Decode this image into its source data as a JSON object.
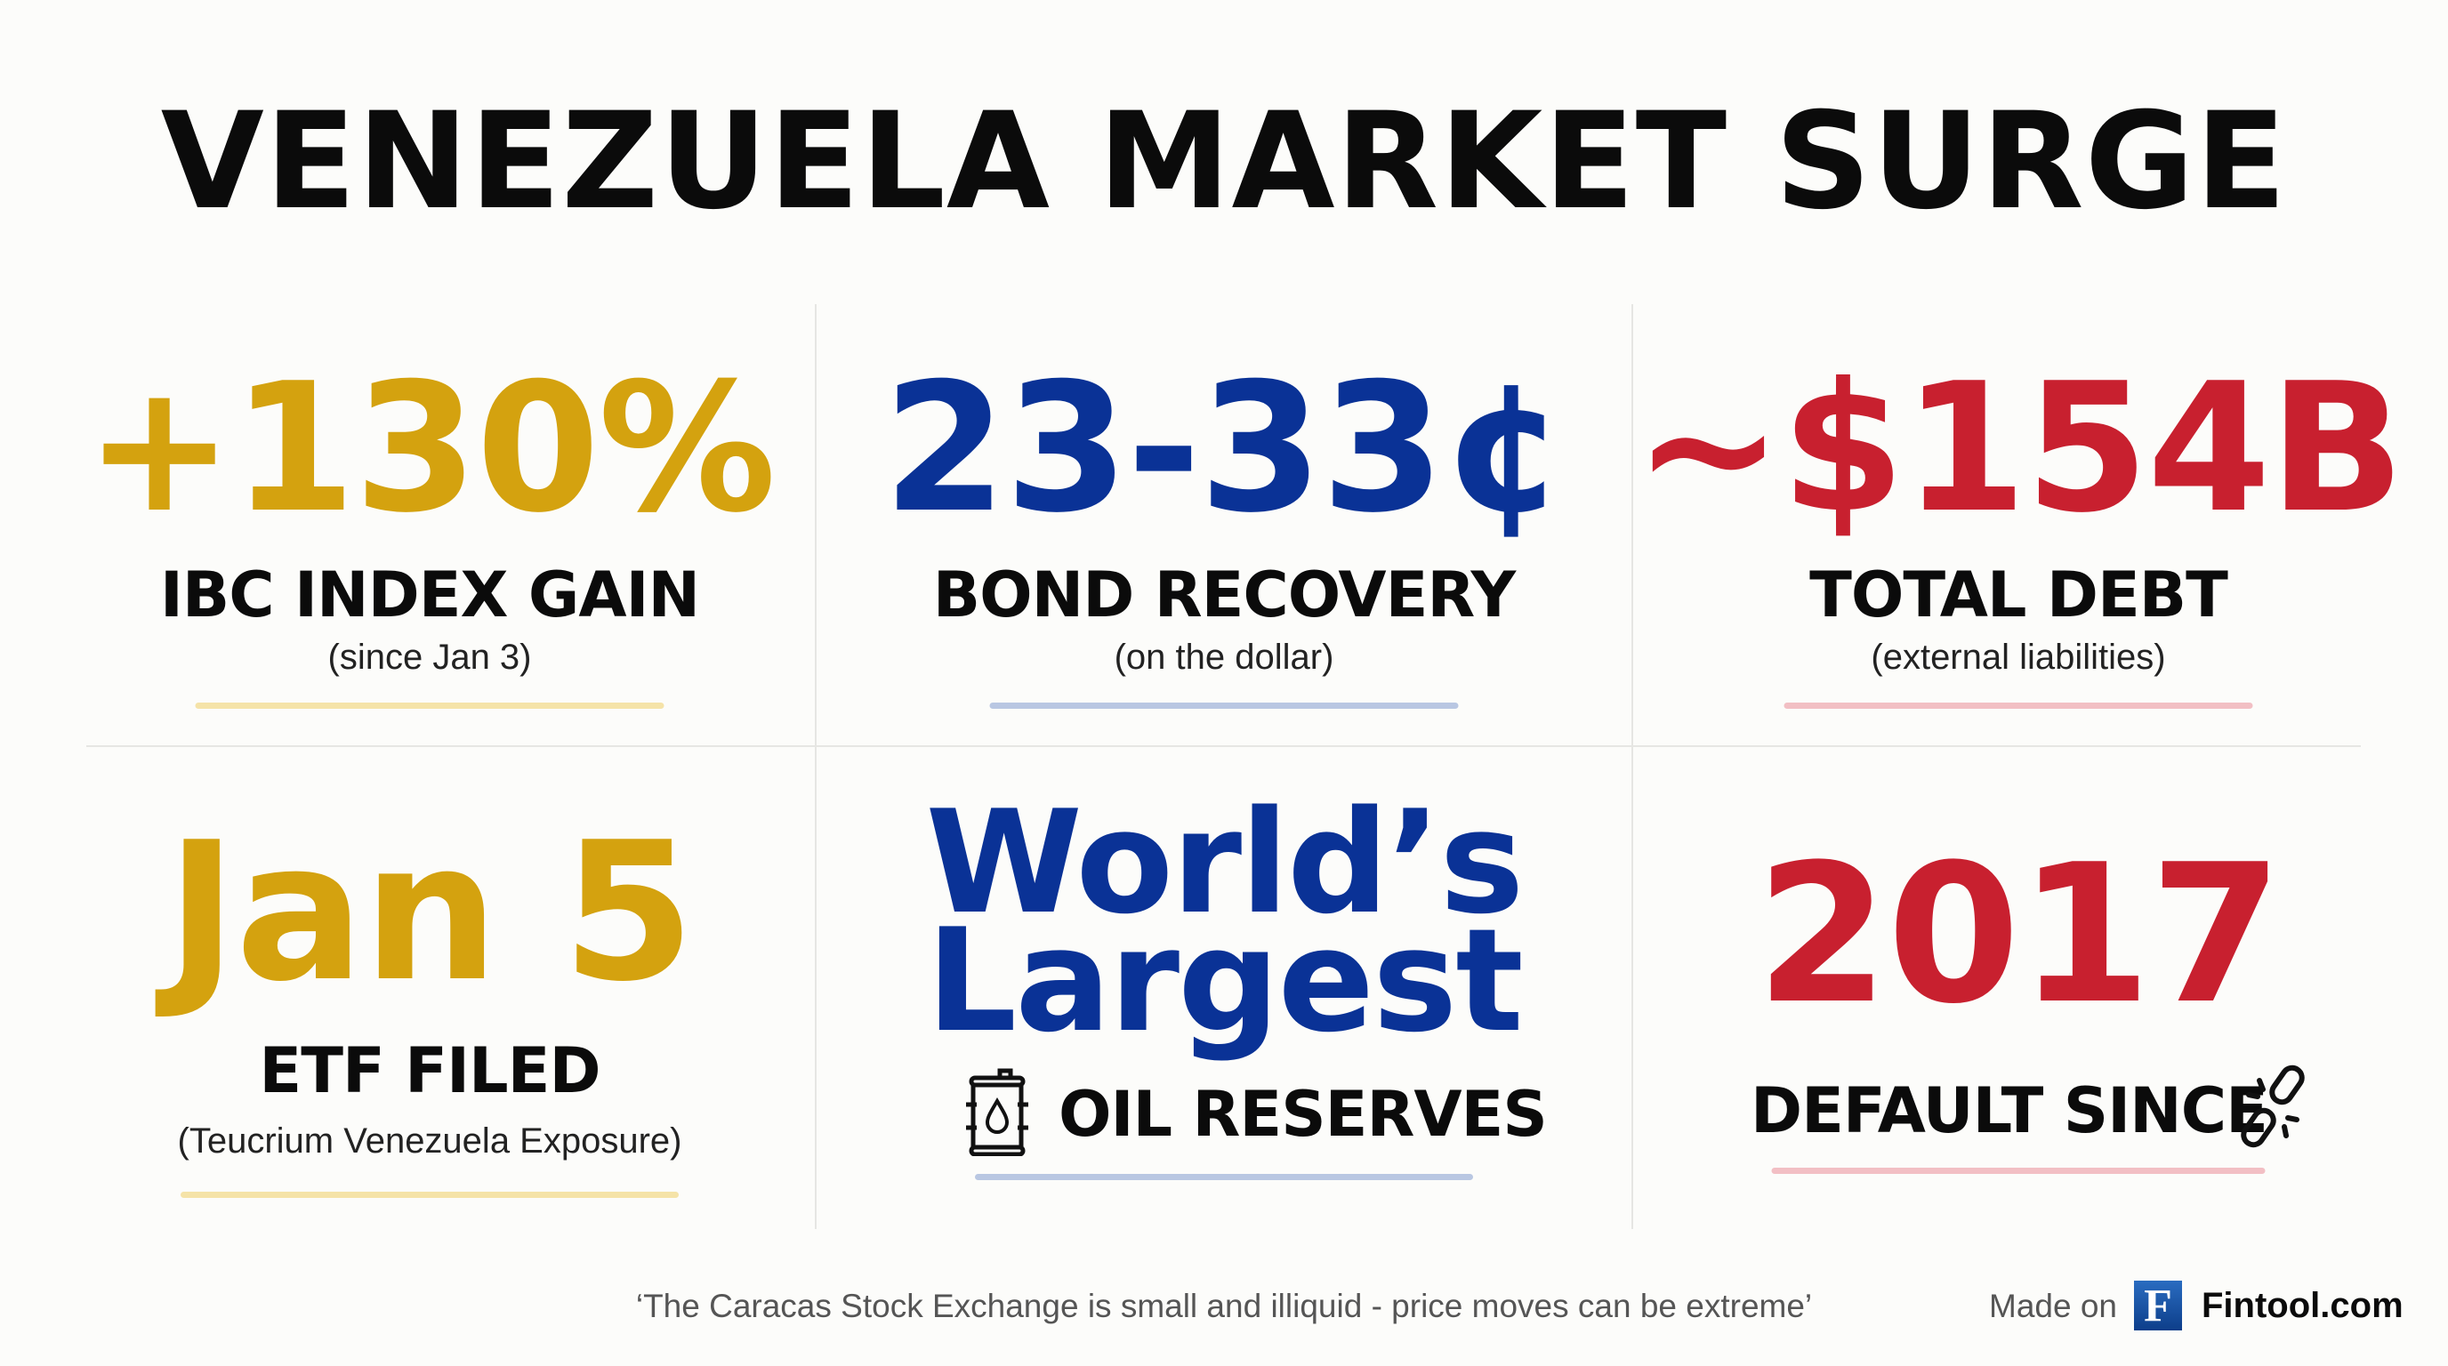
{
  "title": "VENEZUELA MARKET SURGE",
  "colors": {
    "gold": "#D4A20F",
    "blue": "#0A3296",
    "red": "#C8202F",
    "gold_line": "#F5E3A8",
    "blue_line": "#B9C7E2",
    "red_line": "#F2BFC4"
  },
  "cards": [
    {
      "value": "+130%",
      "label": "IBC INDEX GAIN",
      "sub": "(since Jan 3)"
    },
    {
      "value": "23-33¢",
      "label": "BOND RECOVERY",
      "sub": "(on the dollar)"
    },
    {
      "value": "~$154B",
      "label": "TOTAL DEBT",
      "sub": "(external liabilities)"
    },
    {
      "value": "Jan 5",
      "label": "ETF FILED",
      "sub": "(Teucrium Venezuela Exposure)"
    },
    {
      "value_line1": "World’s",
      "value_line2": "Largest",
      "label": "OIL RESERVES",
      "icon": "oil-barrel-icon"
    },
    {
      "value": "2017",
      "label": "DEFAULT SINCE",
      "icon": "broken-chain-icon"
    }
  ],
  "footer": {
    "quote": "‘The Caracas Stock Exchange is small and illiquid - price moves can be extreme’",
    "made_on": "Made on",
    "logo_letter": "F",
    "brand": "Fintool.com"
  }
}
